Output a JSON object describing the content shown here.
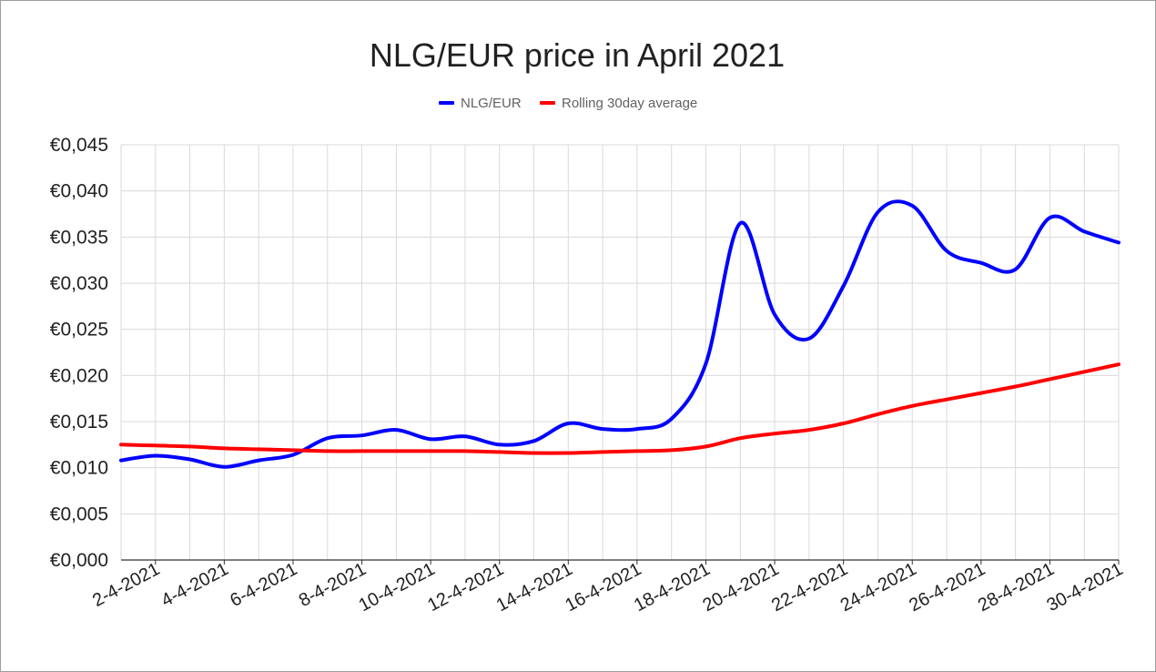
{
  "chart_data": {
    "type": "line",
    "title": "NLG/EUR price in April 2021",
    "xlabel": "",
    "ylabel": "",
    "ylim": [
      0,
      0.045
    ],
    "yticks": [
      0,
      0.005,
      0.01,
      0.015,
      0.02,
      0.025,
      0.03,
      0.035,
      0.04,
      0.045
    ],
    "ytick_labels": [
      "€0,000",
      "€0,005",
      "€0,010",
      "€0,015",
      "€0,020",
      "€0,025",
      "€0,030",
      "€0,035",
      "€0,040",
      "€0,045"
    ],
    "x": [
      "1-4-2021",
      "2-4-2021",
      "3-4-2021",
      "4-4-2021",
      "5-4-2021",
      "6-4-2021",
      "7-4-2021",
      "8-4-2021",
      "9-4-2021",
      "10-4-2021",
      "11-4-2021",
      "12-4-2021",
      "13-4-2021",
      "14-4-2021",
      "15-4-2021",
      "16-4-2021",
      "17-4-2021",
      "18-4-2021",
      "19-4-2021",
      "20-4-2021",
      "21-4-2021",
      "22-4-2021",
      "23-4-2021",
      "24-4-2021",
      "25-4-2021",
      "26-4-2021",
      "27-4-2021",
      "28-4-2021",
      "29-4-2021",
      "30-4-2021"
    ],
    "xtick_labels": [
      "2-4-2021",
      "4-4-2021",
      "6-4-2021",
      "8-4-2021",
      "10-4-2021",
      "12-4-2021",
      "14-4-2021",
      "16-4-2021",
      "18-4-2021",
      "20-4-2021",
      "22-4-2021",
      "24-4-2021",
      "26-4-2021",
      "28-4-2021",
      "30-4-2021"
    ],
    "grid": true,
    "legend_position": "top-center",
    "series": [
      {
        "name": "NLG/EUR",
        "color": "#0000ff",
        "values": [
          0.0108,
          0.0113,
          0.0109,
          0.0101,
          0.0108,
          0.0114,
          0.0132,
          0.0135,
          0.0141,
          0.0131,
          0.0134,
          0.0125,
          0.0129,
          0.0148,
          0.0142,
          0.0142,
          0.0153,
          0.0213,
          0.0365,
          0.0266,
          0.024,
          0.0297,
          0.0377,
          0.0384,
          0.0335,
          0.0322,
          0.0315,
          0.0371,
          0.0356,
          0.0344
        ]
      },
      {
        "name": "Rolling 30day average",
        "color": "#ff0000",
        "values": [
          0.0125,
          0.0124,
          0.0123,
          0.0121,
          0.012,
          0.0119,
          0.0118,
          0.0118,
          0.0118,
          0.0118,
          0.0118,
          0.0117,
          0.0116,
          0.0116,
          0.0117,
          0.0118,
          0.0119,
          0.0123,
          0.0132,
          0.0137,
          0.0141,
          0.0148,
          0.0158,
          0.0167,
          0.0174,
          0.0181,
          0.0188,
          0.0196,
          0.0204,
          0.0212
        ]
      }
    ]
  }
}
